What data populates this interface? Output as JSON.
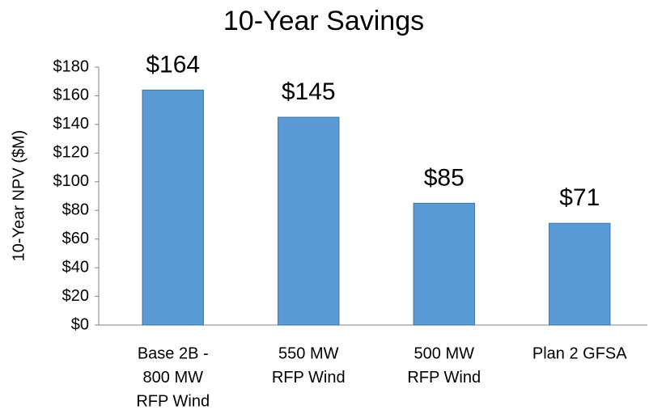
{
  "chart_data": {
    "type": "bar",
    "title": "10-Year Savings",
    "y_label": "10-Year NPV ($M)",
    "categories": [
      [
        "Base 2B -",
        "800 MW",
        "RFP Wind"
      ],
      [
        "550 MW",
        "RFP Wind"
      ],
      [
        "500 MW",
        "RFP Wind"
      ],
      [
        "Plan 2 GFSA"
      ]
    ],
    "values": [
      164,
      145,
      85,
      71
    ],
    "value_labels": [
      "$164",
      "$145",
      "$85",
      "$71"
    ],
    "color": "#5b9bd5",
    "ylim": [
      0,
      180
    ],
    "yticks": [
      {
        "value": 0,
        "label": "$0"
      },
      {
        "value": 20,
        "label": "$20"
      },
      {
        "value": 40,
        "label": "$40"
      },
      {
        "value": 60,
        "label": "$60"
      },
      {
        "value": 80,
        "label": "$80"
      },
      {
        "value": 100,
        "label": "$100"
      },
      {
        "value": 120,
        "label": "$120"
      },
      {
        "value": 140,
        "label": "$140"
      },
      {
        "value": 160,
        "label": "$160"
      },
      {
        "value": 180,
        "label": "$180"
      }
    ],
    "grid": false
  }
}
